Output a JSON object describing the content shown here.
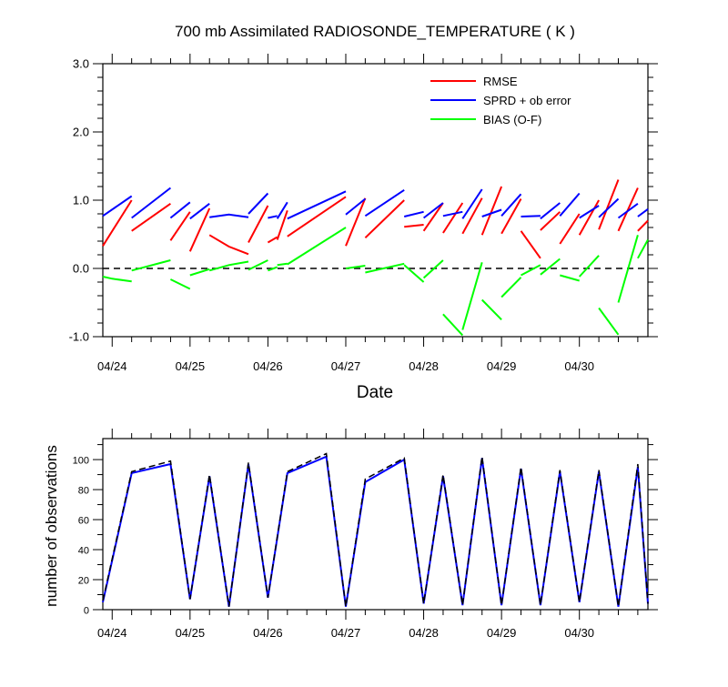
{
  "chart_data": [
    {
      "type": "line",
      "title": "700 mb Assimilated RADIOSONDE_TEMPERATURE ( K )",
      "xlabel": "Date",
      "ylabel": "",
      "ylim": [
        -1.0,
        3.0
      ],
      "yticks": [
        "-1.0",
        "0.0",
        "1.0",
        "2.0",
        "3.0"
      ],
      "ytick_values": [
        -1,
        0,
        1,
        2,
        3
      ],
      "xlim": [
        -0.12,
        6.88
      ],
      "xticks": [
        "04/24",
        "04/25",
        "04/26",
        "04/27",
        "04/28",
        "04/29",
        "04/30"
      ],
      "xtick_values": [
        0,
        1,
        2,
        3,
        4,
        5,
        6
      ],
      "reference_line": {
        "y": 0,
        "style": "dashed",
        "color": "#000000"
      },
      "legend_position": "top-right",
      "series": [
        {
          "name": "RMSE",
          "color": "#ff0000",
          "segments": [
            [
              [
                -0.12,
                0.33
              ],
              [
                0.25,
                1.0
              ]
            ],
            [
              [
                0.25,
                0.55
              ],
              [
                0.75,
                0.95
              ]
            ],
            [
              [
                0.75,
                0.41
              ],
              [
                1.0,
                0.83
              ]
            ],
            [
              [
                1.0,
                0.25
              ],
              [
                1.25,
                0.88
              ]
            ],
            [
              [
                1.25,
                0.49
              ],
              [
                1.5,
                0.32
              ],
              [
                1.75,
                0.21
              ]
            ],
            [
              [
                1.75,
                0.38
              ],
              [
                2.0,
                0.92
              ]
            ],
            [
              [
                2.0,
                0.38
              ],
              [
                2.12,
                0.46
              ]
            ],
            [
              [
                2.12,
                0.42
              ],
              [
                2.25,
                0.85
              ]
            ],
            [
              [
                2.25,
                0.47
              ],
              [
                3.0,
                1.05
              ]
            ],
            [
              [
                3.0,
                0.33
              ],
              [
                3.25,
                1.03
              ]
            ],
            [
              [
                3.25,
                0.45
              ],
              [
                3.75,
                1.0
              ]
            ],
            [
              [
                3.75,
                0.61
              ],
              [
                4.0,
                0.64
              ]
            ],
            [
              [
                4.0,
                0.55
              ],
              [
                4.25,
                0.96
              ]
            ],
            [
              [
                4.25,
                0.52
              ],
              [
                4.5,
                0.96
              ]
            ],
            [
              [
                4.5,
                0.51
              ],
              [
                4.75,
                1.03
              ]
            ],
            [
              [
                4.75,
                0.49
              ],
              [
                5.0,
                1.2
              ]
            ],
            [
              [
                5.0,
                0.51
              ],
              [
                5.25,
                1.02
              ]
            ],
            [
              [
                5.25,
                0.55
              ],
              [
                5.5,
                0.15
              ]
            ],
            [
              [
                5.5,
                0.56
              ],
              [
                5.75,
                0.83
              ]
            ],
            [
              [
                5.75,
                0.36
              ],
              [
                6.0,
                0.8
              ]
            ],
            [
              [
                6.0,
                0.49
              ],
              [
                6.25,
                1.0
              ]
            ],
            [
              [
                6.25,
                0.57
              ],
              [
                6.5,
                1.3
              ]
            ],
            [
              [
                6.5,
                0.55
              ],
              [
                6.75,
                1.18
              ]
            ],
            [
              [
                6.75,
                0.55
              ],
              [
                6.88,
                0.7
              ]
            ]
          ]
        },
        {
          "name": "SPRD + ob error",
          "color": "#0000ff",
          "segments": [
            [
              [
                -0.12,
                0.77
              ],
              [
                0.25,
                1.06
              ]
            ],
            [
              [
                0.25,
                0.74
              ],
              [
                0.75,
                1.18
              ]
            ],
            [
              [
                0.75,
                0.74
              ],
              [
                1.0,
                0.97
              ]
            ],
            [
              [
                1.0,
                0.73
              ],
              [
                1.25,
                0.95
              ]
            ],
            [
              [
                1.25,
                0.75
              ],
              [
                1.5,
                0.79
              ],
              [
                1.75,
                0.75
              ]
            ],
            [
              [
                1.75,
                0.8
              ],
              [
                2.0,
                1.1
              ]
            ],
            [
              [
                2.0,
                0.74
              ],
              [
                2.12,
                0.77
              ]
            ],
            [
              [
                2.12,
                0.73
              ],
              [
                2.25,
                0.97
              ]
            ],
            [
              [
                2.25,
                0.73
              ],
              [
                3.0,
                1.13
              ]
            ],
            [
              [
                3.0,
                0.79
              ],
              [
                3.25,
                1.02
              ]
            ],
            [
              [
                3.25,
                0.77
              ],
              [
                3.75,
                1.15
              ]
            ],
            [
              [
                3.75,
                0.76
              ],
              [
                4.0,
                0.83
              ]
            ],
            [
              [
                4.0,
                0.74
              ],
              [
                4.25,
                0.96
              ]
            ],
            [
              [
                4.25,
                0.77
              ],
              [
                4.5,
                0.83
              ]
            ],
            [
              [
                4.5,
                0.73
              ],
              [
                4.75,
                1.16
              ]
            ],
            [
              [
                4.75,
                0.76
              ],
              [
                5.0,
                0.86
              ]
            ],
            [
              [
                5.0,
                0.77
              ],
              [
                5.25,
                1.09
              ]
            ],
            [
              [
                5.25,
                0.76
              ],
              [
                5.5,
                0.77
              ]
            ],
            [
              [
                5.5,
                0.73
              ],
              [
                5.75,
                0.96
              ]
            ],
            [
              [
                5.75,
                0.77
              ],
              [
                6.0,
                1.1
              ]
            ],
            [
              [
                6.0,
                0.74
              ],
              [
                6.25,
                0.92
              ]
            ],
            [
              [
                6.25,
                0.75
              ],
              [
                6.5,
                1.02
              ]
            ],
            [
              [
                6.5,
                0.74
              ],
              [
                6.75,
                0.95
              ]
            ],
            [
              [
                6.75,
                0.76
              ],
              [
                6.88,
                0.87
              ]
            ]
          ]
        },
        {
          "name": "BIAS (O-F)",
          "color": "#00ff00",
          "segments": [
            [
              [
                -0.12,
                -0.12
              ],
              [
                0.0,
                -0.15
              ],
              [
                0.25,
                -0.19
              ]
            ],
            [
              [
                0.25,
                -0.03
              ],
              [
                0.75,
                0.12
              ]
            ],
            [
              [
                0.75,
                -0.16
              ],
              [
                1.0,
                -0.3
              ]
            ],
            [
              [
                1.0,
                -0.1
              ],
              [
                1.25,
                -0.01
              ]
            ],
            [
              [
                1.25,
                -0.03
              ],
              [
                1.5,
                0.05
              ],
              [
                1.75,
                0.1
              ]
            ],
            [
              [
                1.75,
                -0.02
              ],
              [
                2.0,
                0.12
              ]
            ],
            [
              [
                2.0,
                -0.03
              ],
              [
                2.12,
                0.02
              ]
            ],
            [
              [
                2.12,
                0.05
              ],
              [
                2.25,
                0.07
              ]
            ],
            [
              [
                2.25,
                0.06
              ],
              [
                3.0,
                0.6
              ]
            ],
            [
              [
                3.0,
                0.0
              ],
              [
                3.25,
                0.04
              ]
            ],
            [
              [
                3.25,
                -0.06
              ],
              [
                3.75,
                0.07
              ]
            ],
            [
              [
                3.75,
                0.05
              ],
              [
                4.0,
                -0.2
              ]
            ],
            [
              [
                4.0,
                -0.14
              ],
              [
                4.25,
                0.12
              ]
            ],
            [
              [
                4.25,
                -0.67
              ],
              [
                4.5,
                -0.98
              ]
            ],
            [
              [
                4.5,
                -0.9
              ],
              [
                4.75,
                0.09
              ]
            ],
            [
              [
                4.75,
                -0.46
              ],
              [
                5.0,
                -0.75
              ]
            ],
            [
              [
                5.0,
                -0.42
              ],
              [
                5.25,
                -0.13
              ]
            ],
            [
              [
                5.25,
                -0.1
              ],
              [
                5.5,
                0.05
              ]
            ],
            [
              [
                5.5,
                -0.09
              ],
              [
                5.75,
                0.14
              ]
            ],
            [
              [
                5.75,
                -0.1
              ],
              [
                6.0,
                -0.18
              ]
            ],
            [
              [
                6.0,
                -0.12
              ],
              [
                6.25,
                0.19
              ]
            ],
            [
              [
                6.25,
                -0.58
              ],
              [
                6.5,
                -0.97
              ]
            ],
            [
              [
                6.5,
                -0.5
              ],
              [
                6.75,
                0.49
              ]
            ],
            [
              [
                6.75,
                0.15
              ],
              [
                6.88,
                0.42
              ]
            ]
          ]
        }
      ]
    },
    {
      "type": "line",
      "title": "",
      "xlabel": "",
      "ylabel": "number of observations",
      "ylim": [
        0,
        114
      ],
      "yticks": [
        "0",
        "20",
        "40",
        "60",
        "80",
        "100"
      ],
      "ytick_values": [
        0,
        20,
        40,
        60,
        80,
        100
      ],
      "xlim": [
        -0.12,
        6.88
      ],
      "xticks": [
        "04/24",
        "04/25",
        "04/26",
        "04/27",
        "04/28",
        "04/29",
        "04/30"
      ],
      "xtick_values": [
        0,
        1,
        2,
        3,
        4,
        5,
        6
      ],
      "series": [
        {
          "color": "#0000ff",
          "style": "solid",
          "points": [
            [
              -0.12,
              5
            ],
            [
              0.25,
              91
            ],
            [
              0.75,
              97
            ],
            [
              1.0,
              7
            ],
            [
              1.25,
              89
            ],
            [
              1.5,
              2
            ],
            [
              1.75,
              97
            ],
            [
              2.0,
              8
            ],
            [
              2.25,
              91
            ],
            [
              2.75,
              102
            ],
            [
              3.0,
              2
            ],
            [
              3.25,
              85
            ],
            [
              3.75,
              100
            ],
            [
              4.0,
              4
            ],
            [
              4.25,
              89
            ],
            [
              4.5,
              3
            ],
            [
              4.75,
              101
            ],
            [
              5.0,
              3
            ],
            [
              5.25,
              94
            ],
            [
              5.5,
              3
            ],
            [
              5.75,
              92
            ],
            [
              6.0,
              5
            ],
            [
              6.25,
              92
            ],
            [
              6.5,
              2
            ],
            [
              6.75,
              95
            ],
            [
              6.88,
              4
            ]
          ]
        },
        {
          "color": "#000000",
          "style": "dashed",
          "points": [
            [
              -0.12,
              6
            ],
            [
              0.25,
              92
            ],
            [
              0.75,
              99
            ],
            [
              1.0,
              7
            ],
            [
              1.25,
              90
            ],
            [
              1.5,
              2
            ],
            [
              1.75,
              98
            ],
            [
              2.0,
              8
            ],
            [
              2.25,
              92
            ],
            [
              2.75,
              104
            ],
            [
              3.0,
              2
            ],
            [
              3.25,
              87
            ],
            [
              3.75,
              101
            ],
            [
              4.0,
              4
            ],
            [
              4.25,
              90
            ],
            [
              4.5,
              3
            ],
            [
              4.75,
              102
            ],
            [
              5.0,
              3
            ],
            [
              5.25,
              95
            ],
            [
              5.5,
              3
            ],
            [
              5.75,
              93
            ],
            [
              6.0,
              5
            ],
            [
              6.25,
              93
            ],
            [
              6.5,
              2
            ],
            [
              6.75,
              97
            ],
            [
              6.88,
              4
            ]
          ]
        }
      ]
    }
  ]
}
